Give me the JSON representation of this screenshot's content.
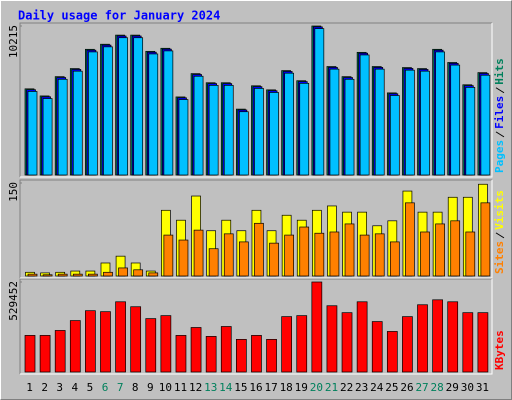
{
  "title": "Daily usage for January 2024",
  "chart_data": [
    {
      "type": "bar",
      "ylim": [
        0,
        10215
      ],
      "yticks": [
        10215
      ],
      "series": [
        {
          "name": "Hits",
          "color": "#00805c",
          "values": [
            5908,
            5421,
            6742,
            7298,
            8618,
            8966,
            9591,
            9591,
            8479,
            8688,
            5352,
            6950,
            6325,
            6325,
            4518,
            6116,
            5838,
            7159,
            6464,
            10215,
            7437,
            6742,
            8410,
            7437,
            5630,
            7367,
            7298,
            8618,
            7715,
            6186,
            7020
          ]
        },
        {
          "name": "Files",
          "color": "#0000ff",
          "values": [
            5848,
            5361,
            6682,
            7238,
            8558,
            8906,
            9531,
            9531,
            8419,
            8628,
            5292,
            6890,
            6265,
            6265,
            4458,
            6056,
            5778,
            7099,
            6404,
            10155,
            7377,
            6682,
            8350,
            7377,
            5570,
            7307,
            7238,
            8558,
            7655,
            6126,
            6960
          ]
        },
        {
          "name": "Pages",
          "color": "#00c0ff",
          "values": [
            5728,
            5241,
            6562,
            7118,
            8438,
            8786,
            9411,
            9411,
            8299,
            8508,
            5172,
            6770,
            6145,
            6145,
            4338,
            5936,
            5658,
            6979,
            6284,
            10035,
            7257,
            6562,
            8230,
            7257,
            5450,
            7187,
            7118,
            8438,
            7535,
            6006,
            6840
          ]
        }
      ]
    },
    {
      "type": "bar",
      "ylim": [
        0,
        150
      ],
      "yticks": [
        150
      ],
      "series": [
        {
          "name": "Visits",
          "color": "#ffff00",
          "values": [
            6,
            5,
            6,
            8,
            8,
            21,
            32,
            21,
            8,
            106,
            90,
            129,
            73,
            90,
            73,
            106,
            73,
            98,
            90,
            106,
            113,
            103,
            103,
            81,
            89,
            137,
            103,
            103,
            127,
            127,
            148
          ]
        },
        {
          "name": "Sites",
          "color": "#ff8000",
          "values": [
            3,
            2,
            3,
            3,
            3,
            6,
            13,
            10,
            5,
            66,
            58,
            74,
            44,
            68,
            55,
            85,
            53,
            66,
            79,
            69,
            71,
            84,
            66,
            68,
            55,
            118,
            71,
            84,
            89,
            71,
            118
          ]
        }
      ]
    },
    {
      "type": "bar",
      "ylim": [
        0,
        529452
      ],
      "yticks": [
        529452
      ],
      "categories": [
        "1",
        "2",
        "3",
        "4",
        "5",
        "6",
        "7",
        "8",
        "9",
        "10",
        "11",
        "12",
        "13",
        "14",
        "15",
        "16",
        "17",
        "18",
        "19",
        "20",
        "21",
        "22",
        "23",
        "24",
        "25",
        "26",
        "27",
        "28",
        "29",
        "30",
        "31"
      ],
      "category_colors": [
        "#000000",
        "#000000",
        "#000000",
        "#000000",
        "#000000",
        "#00805c",
        "#00805c",
        "#000000",
        "#000000",
        "#000000",
        "#000000",
        "#000000",
        "#00805c",
        "#00805c",
        "#000000",
        "#000000",
        "#000000",
        "#000000",
        "#000000",
        "#00805c",
        "#00805c",
        "#000000",
        "#000000",
        "#000000",
        "#000000",
        "#000000",
        "#00805c",
        "#00805c",
        "#000000",
        "#000000",
        "#000000"
      ],
      "series": [
        {
          "name": "KBytes",
          "color": "#ff0000",
          "values": [
            215266,
            215266,
            244356,
            302536,
            360716,
            354898,
            413078,
            383988,
            314172,
            331626,
            215266,
            261810,
            209448,
            267628,
            191994,
            215266,
            191994,
            325808,
            331626,
            529452,
            389806,
            349080,
            413078,
            296718,
            238538,
            325808,
            395624,
            424714,
            413078,
            349080,
            349080
          ]
        }
      ]
    }
  ]
}
